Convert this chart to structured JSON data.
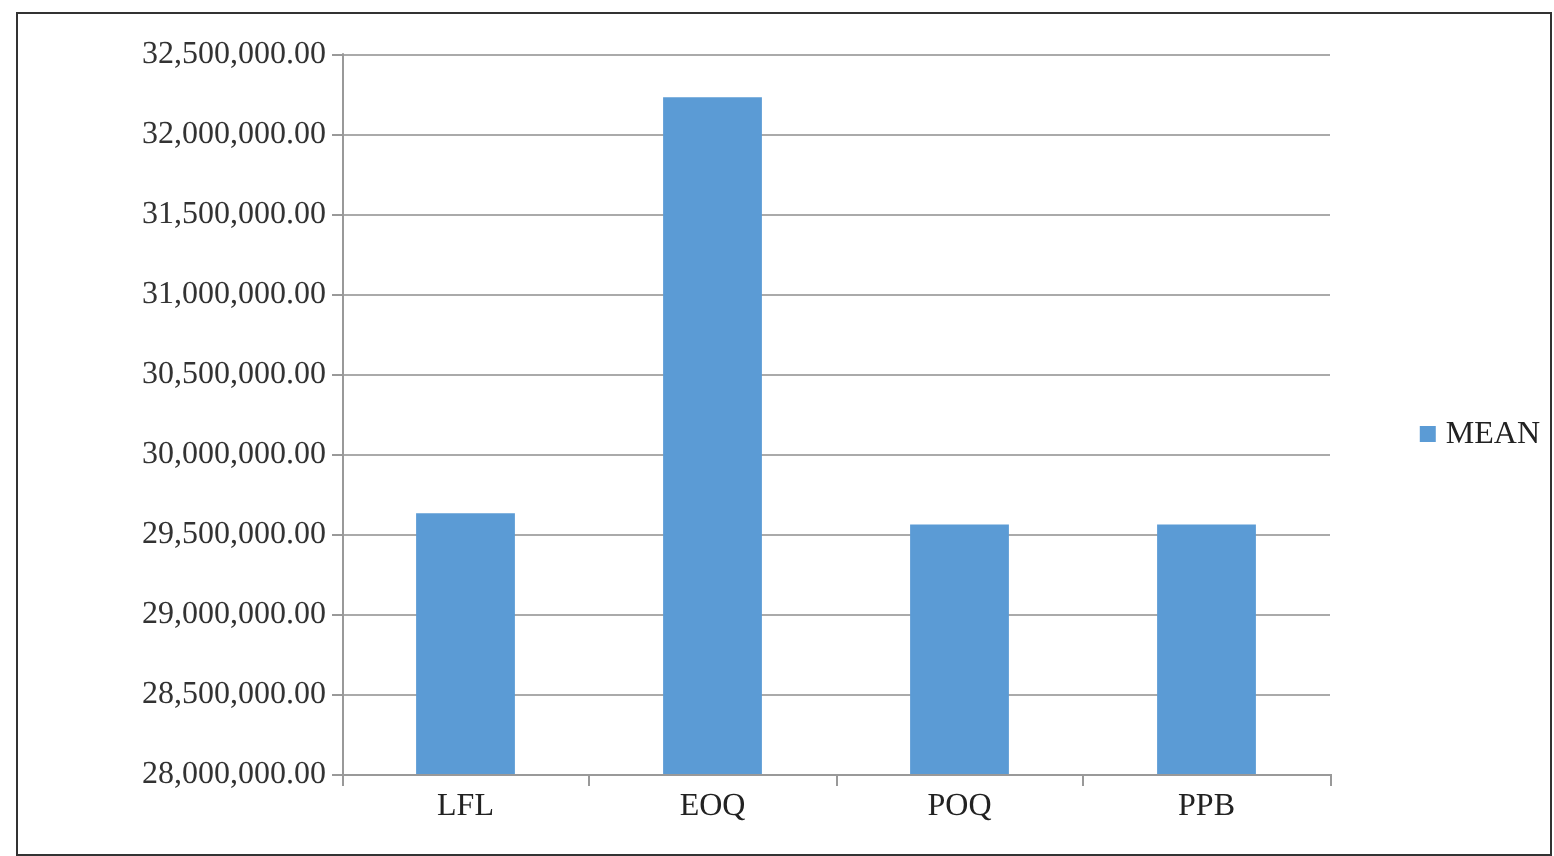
{
  "chart_data": {
    "type": "bar",
    "categories": [
      "LFL",
      "EOQ",
      "POQ",
      "PPB"
    ],
    "series": [
      {
        "name": "MEAN",
        "color": "#5b9bd5",
        "values": [
          29630000,
          32230000,
          29560000,
          29560000
        ]
      }
    ],
    "ylim": [
      28000000,
      32500000
    ],
    "yticks": [
      {
        "value": 28000000,
        "label": "28,000,000.00"
      },
      {
        "value": 28500000,
        "label": "28,500,000.00"
      },
      {
        "value": 29000000,
        "label": "29,000,000.00"
      },
      {
        "value": 29500000,
        "label": "29,500,000.00"
      },
      {
        "value": 30000000,
        "label": "30,000,000.00"
      },
      {
        "value": 30500000,
        "label": "30,500,000.00"
      },
      {
        "value": 31000000,
        "label": "31,000,000.00"
      },
      {
        "value": 31500000,
        "label": "31,500,000.00"
      },
      {
        "value": 32000000,
        "label": "32,000,000.00"
      },
      {
        "value": 32500000,
        "label": "32,500,000.00"
      }
    ],
    "grid": "y",
    "legend": "right"
  }
}
